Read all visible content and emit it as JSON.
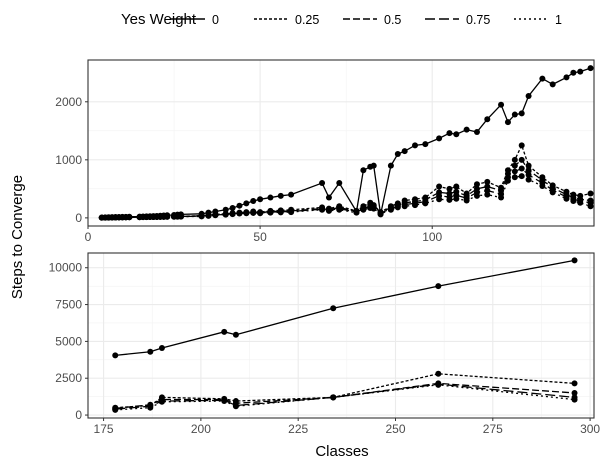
{
  "chart_data": {
    "type": "line",
    "legend": {
      "title": "Yes Weight",
      "entries": [
        "0",
        "0.25",
        "0.5",
        "0.75",
        "1"
      ],
      "dashes": [
        "",
        "3,2",
        "7,3",
        "10,4",
        "2,3"
      ],
      "placement": "top"
    },
    "ylabel": "Steps to Converge",
    "xlabel": "Classes",
    "grid": true,
    "panels": [
      {
        "xlim": [
          0,
          147
        ],
        "ylim": [
          -140,
          2720
        ],
        "xticks": [
          0,
          50,
          100
        ],
        "yticks": [
          0,
          1000,
          2000
        ],
        "x": [
          4,
          5,
          6,
          7,
          8,
          9,
          10,
          11,
          12,
          15,
          16,
          17,
          18,
          19,
          20,
          21,
          22,
          23,
          25,
          26,
          27,
          33,
          35,
          37,
          40,
          42,
          44,
          46,
          48,
          50,
          53,
          56,
          59,
          68,
          70,
          73,
          78,
          80,
          82,
          83,
          85,
          88,
          90,
          92,
          95,
          98,
          102,
          105,
          107,
          110,
          113,
          116,
          120,
          122,
          124,
          126,
          128,
          132,
          135,
          139,
          141,
          143,
          146
        ],
        "series": [
          {
            "name": "0",
            "values": [
              5,
              8,
              10,
              12,
              14,
              15,
              17,
              18,
              20,
              22,
              24,
              26,
              28,
              30,
              33,
              36,
              40,
              45,
              50,
              55,
              60,
              70,
              90,
              110,
              140,
              170,
              210,
              250,
              290,
              320,
              350,
              380,
              400,
              600,
              350,
              600,
              110,
              820,
              880,
              900,
              60,
              900,
              1100,
              1150,
              1250,
              1270,
              1370,
              1460,
              1440,
              1520,
              1480,
              1700,
              1950,
              1650,
              1780,
              1800,
              2100,
              2400,
              2300,
              2420,
              2500,
              2520,
              2580
            ]
          },
          {
            "name": "0.25",
            "values": [
              5,
              6,
              7,
              8,
              9,
              10,
              11,
              12,
              13,
              14,
              15,
              16,
              17,
              18,
              19,
              20,
              21,
              22,
              23,
              24,
              25,
              40,
              50,
              60,
              70,
              80,
              90,
              100,
              110,
              100,
              120,
              130,
              140,
              180,
              160,
              200,
              120,
              200,
              260,
              220,
              100,
              200,
              250,
              300,
              320,
              350,
              540,
              500,
              540,
              420,
              580,
              620,
              520,
              820,
              1000,
              1250,
              900,
              700,
              560,
              450,
              400,
              380,
              420
            ]
          },
          {
            "name": "0.5",
            "values": [
              4,
              5,
              6,
              7,
              8,
              9,
              10,
              11,
              12,
              13,
              14,
              15,
              16,
              17,
              18,
              19,
              20,
              21,
              22,
              23,
              24,
              35,
              45,
              55,
              65,
              75,
              85,
              90,
              95,
              90,
              110,
              115,
              120,
              160,
              140,
              180,
              110,
              180,
              230,
              200,
              90,
              180,
              220,
              260,
              280,
              310,
              440,
              420,
              450,
              380,
              500,
              540,
              470,
              760,
              900,
              1000,
              820,
              650,
              520,
              400,
              350,
              320,
              300
            ]
          },
          {
            "name": "0.75",
            "values": [
              4,
              5,
              5,
              6,
              7,
              8,
              9,
              10,
              11,
              12,
              13,
              14,
              15,
              16,
              17,
              18,
              19,
              20,
              21,
              22,
              23,
              30,
              40,
              50,
              60,
              70,
              80,
              85,
              90,
              85,
              100,
              105,
              110,
              150,
              130,
              160,
              100,
              160,
              200,
              180,
              80,
              160,
              200,
              230,
              250,
              280,
              380,
              360,
              390,
              340,
              440,
              470,
              410,
              700,
              800,
              850,
              740,
              600,
              480,
              360,
              320,
              290,
              260
            ]
          },
          {
            "name": "1",
            "values": [
              4,
              4,
              5,
              5,
              6,
              7,
              8,
              9,
              10,
              11,
              12,
              13,
              14,
              15,
              16,
              17,
              18,
              19,
              20,
              21,
              22,
              25,
              35,
              45,
              55,
              65,
              75,
              80,
              85,
              80,
              90,
              95,
              100,
              140,
              120,
              140,
              90,
              140,
              170,
              160,
              70,
              140,
              180,
              200,
              220,
              250,
              320,
              310,
              330,
              300,
              380,
              400,
              350,
              640,
              700,
              720,
              660,
              550,
              440,
              330,
              290,
              260,
              200
            ]
          }
        ]
      },
      {
        "xlim": [
          171,
          301
        ],
        "ylim": [
          -200,
          11000
        ],
        "xticks": [
          175,
          200,
          225,
          250,
          275,
          300
        ],
        "yticks": [
          0,
          2500,
          5000,
          7500,
          10000
        ],
        "x": [
          178,
          187,
          190,
          206,
          209,
          234,
          261,
          296
        ],
        "series": [
          {
            "name": "0",
            "values": [
              4050,
              4300,
              4550,
              5650,
              5450,
              7250,
              8750,
              10500
            ]
          },
          {
            "name": "0.25",
            "values": [
              500,
              650,
              1200,
              1100,
              950,
              1200,
              2800,
              2150
            ]
          },
          {
            "name": "0.5",
            "values": [
              450,
              700,
              1050,
              1050,
              800,
              1200,
              2150,
              1500
            ]
          },
          {
            "name": "0.75",
            "values": [
              400,
              600,
              950,
              1000,
              650,
              1200,
              2100,
              1200
            ]
          },
          {
            "name": "1",
            "values": [
              350,
              500,
              900,
              950,
              600,
              1200,
              2050,
              1050
            ]
          }
        ]
      }
    ]
  }
}
